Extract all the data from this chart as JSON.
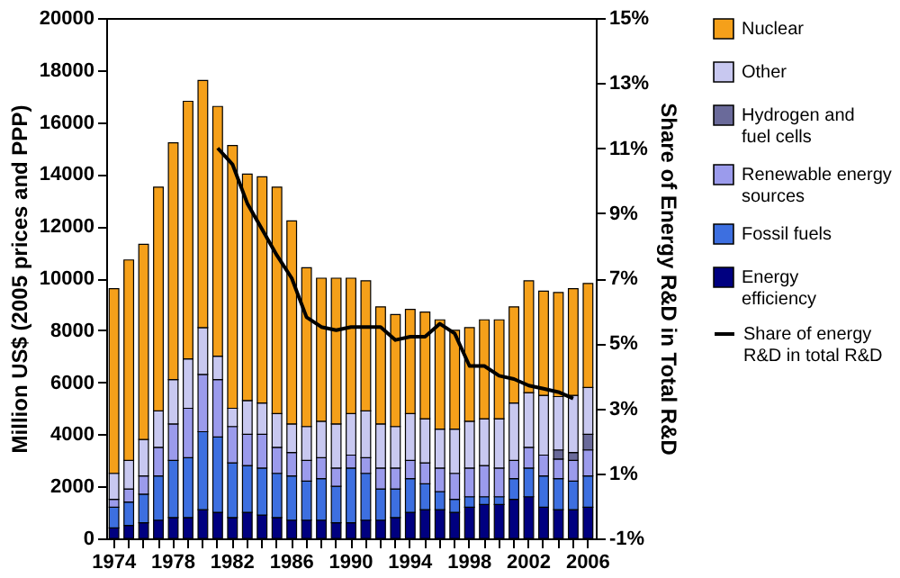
{
  "chart_data": {
    "type": "bar",
    "stacked": true,
    "ylabel": "Million US$ (2005 prices and PPP)",
    "y2label": "Share of Energy R&D in Total R&D",
    "categories": [
      "1974",
      null,
      null,
      null,
      "1978",
      null,
      null,
      null,
      "1982",
      null,
      null,
      null,
      "1986",
      null,
      null,
      null,
      "1990",
      null,
      null,
      null,
      "1994",
      null,
      null,
      null,
      "1998",
      null,
      null,
      null,
      "2002",
      null,
      null,
      null,
      "2006"
    ],
    "series": [
      {
        "name": "Energy efficiency",
        "color": "#000080",
        "values": [
          400,
          500,
          600,
          700,
          800,
          800,
          1100,
          1000,
          800,
          1000,
          900,
          800,
          700,
          700,
          700,
          600,
          600,
          700,
          700,
          800,
          1000,
          1100,
          1100,
          1000,
          1200,
          1300,
          1300,
          1500,
          1600,
          1200,
          1100,
          1100,
          1200
        ]
      },
      {
        "name": "Fossil fuels",
        "color": "#3d6fe0",
        "values": [
          800,
          900,
          1100,
          1700,
          2200,
          2300,
          3000,
          2900,
          2100,
          1800,
          1800,
          1700,
          1700,
          1500,
          1600,
          1400,
          2100,
          1800,
          1200,
          1100,
          1300,
          1000,
          700,
          500,
          400,
          300,
          300,
          800,
          1100,
          1200,
          1200,
          1100,
          1200
        ]
      },
      {
        "name": "Renewable energy sources",
        "color": "#9b9bec",
        "values": [
          300,
          500,
          700,
          1100,
          1400,
          1900,
          2200,
          2200,
          1400,
          1200,
          1300,
          1000,
          900,
          800,
          800,
          700,
          500,
          600,
          800,
          800,
          700,
          800,
          900,
          1000,
          1100,
          1200,
          1100,
          700,
          800,
          800,
          750,
          800,
          1000
        ]
      },
      {
        "name": "Hydrogen and fuel cells",
        "color": "#6a6a9a",
        "values": [
          null,
          null,
          null,
          null,
          null,
          null,
          null,
          null,
          null,
          null,
          null,
          null,
          null,
          null,
          null,
          null,
          null,
          null,
          null,
          null,
          null,
          null,
          null,
          null,
          null,
          null,
          null,
          null,
          null,
          null,
          350,
          300,
          600
        ]
      },
      {
        "name": "Other",
        "color": "#c8c8f0",
        "values": [
          1000,
          1100,
          1400,
          1400,
          1700,
          1900,
          1800,
          900,
          700,
          1300,
          1200,
          1300,
          1100,
          1300,
          1400,
          1700,
          1600,
          1800,
          1700,
          1600,
          1800,
          1700,
          1500,
          1700,
          1800,
          1800,
          1900,
          2200,
          2100,
          2300,
          2050,
          2200,
          1800
        ]
      },
      {
        "name": "Nuclear",
        "color": "#f5a01a",
        "values": [
          7100,
          7700,
          7500,
          8600,
          9100,
          9900,
          9500,
          9600,
          10100,
          8700,
          8700,
          8700,
          7800,
          6100,
          5500,
          5600,
          5200,
          5000,
          4500,
          4300,
          4000,
          4100,
          4200,
          3800,
          3600,
          3800,
          3800,
          3700,
          4300,
          4000,
          4000,
          4100,
          4000
        ]
      },
      {
        "name": "Share of energy R&D in total R&D",
        "type": "line",
        "axis": "y2",
        "color": "#000000",
        "values": [
          null,
          null,
          null,
          null,
          null,
          null,
          null,
          11.0,
          10.5,
          9.3,
          8.5,
          7.7,
          7.0,
          5.8,
          5.5,
          5.4,
          5.5,
          5.5,
          5.5,
          5.1,
          5.2,
          5.2,
          5.6,
          5.3,
          4.3,
          4.3,
          4.0,
          3.9,
          3.7,
          3.6,
          3.5,
          3.3,
          null
        ]
      }
    ],
    "ylim": [
      0,
      20000
    ],
    "yticks": [
      0,
      2000,
      4000,
      6000,
      8000,
      10000,
      12000,
      14000,
      16000,
      18000,
      20000
    ],
    "y2lim": [
      -1,
      15
    ],
    "y2ticks": [
      {
        "value": -1,
        "label": "-1%"
      },
      {
        "value": 1,
        "label": "1%"
      },
      {
        "value": 3,
        "label": "3%"
      },
      {
        "value": 5,
        "label": "5%"
      },
      {
        "value": 7,
        "label": "7%"
      },
      {
        "value": 9,
        "label": "9%"
      },
      {
        "value": 11,
        "label": "11%"
      },
      {
        "value": 13,
        "label": "13%"
      },
      {
        "value": 15,
        "label": "15%"
      }
    ],
    "grid": false,
    "legend": "right",
    "marker": "none",
    "line_style": "solid"
  }
}
